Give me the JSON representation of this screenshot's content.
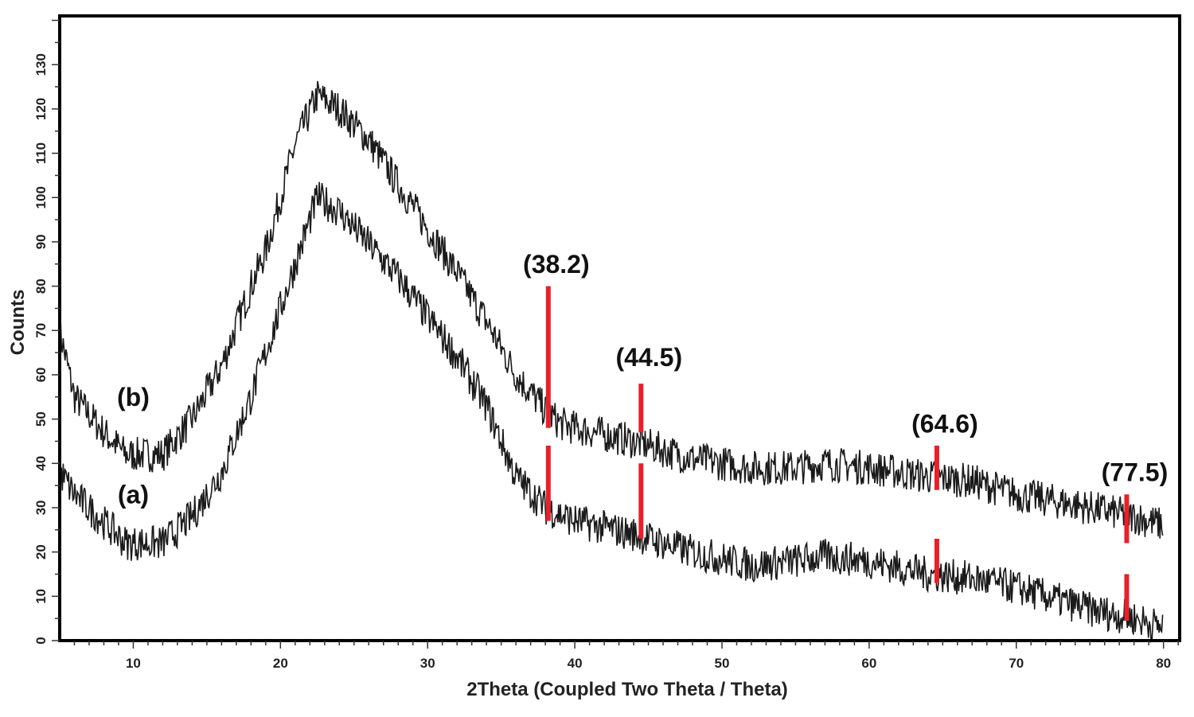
{
  "chart_data": {
    "type": "line",
    "title": "",
    "xlabel": "2Theta (Coupled Two Theta / Theta)",
    "ylabel": "Counts",
    "xlim": [
      5,
      81.1
    ],
    "ylim": [
      0,
      141
    ],
    "xticks": [
      10,
      20,
      30,
      40,
      50,
      60,
      70,
      80
    ],
    "yticks": [
      0,
      10,
      20,
      30,
      40,
      50,
      60,
      70,
      80,
      90,
      100,
      110,
      120,
      130
    ],
    "grid": false,
    "series": [
      {
        "name": "(b)",
        "label_at": [
          10,
          53
        ],
        "noise": 4,
        "points": [
          [
            5,
            70
          ],
          [
            6,
            55
          ],
          [
            8,
            47
          ],
          [
            9.5,
            42
          ],
          [
            12,
            42
          ],
          [
            14,
            50
          ],
          [
            16,
            62
          ],
          [
            18,
            80
          ],
          [
            19,
            88
          ],
          [
            20,
            100
          ],
          [
            21,
            112
          ],
          [
            22.5,
            123
          ],
          [
            24,
            120
          ],
          [
            26,
            113
          ],
          [
            28,
            103
          ],
          [
            30,
            93
          ],
          [
            32,
            83
          ],
          [
            34,
            72
          ],
          [
            36,
            60
          ],
          [
            38,
            52
          ],
          [
            39,
            49
          ],
          [
            40,
            48
          ],
          [
            44,
            45
          ],
          [
            48,
            41
          ],
          [
            52,
            39
          ],
          [
            55,
            39
          ],
          [
            57,
            40
          ],
          [
            60,
            39
          ],
          [
            64,
            37
          ],
          [
            67,
            36
          ],
          [
            70,
            33
          ],
          [
            75,
            30
          ],
          [
            78,
            28
          ],
          [
            80,
            26
          ]
        ]
      },
      {
        "name": "(a)",
        "label_at": [
          10,
          31
        ],
        "noise": 4,
        "points": [
          [
            5,
            38
          ],
          [
            6,
            33
          ],
          [
            9.5,
            22
          ],
          [
            12,
            22
          ],
          [
            14,
            28
          ],
          [
            16,
            38
          ],
          [
            18,
            55
          ],
          [
            20,
            75
          ],
          [
            22.5,
            100
          ],
          [
            24,
            97
          ],
          [
            28,
            82
          ],
          [
            32,
            64
          ],
          [
            34,
            53
          ],
          [
            36,
            37
          ],
          [
            38,
            30
          ],
          [
            40,
            27
          ],
          [
            44,
            24
          ],
          [
            48,
            20
          ],
          [
            52,
            17
          ],
          [
            55,
            18
          ],
          [
            57,
            19
          ],
          [
            60,
            18
          ],
          [
            64,
            15
          ],
          [
            67,
            14
          ],
          [
            70,
            12
          ],
          [
            75,
            7
          ],
          [
            78,
            5
          ],
          [
            80,
            3
          ]
        ]
      }
    ],
    "peak_markers": [
      {
        "label": "(38.2)",
        "x": 38.2,
        "label_y": 83,
        "ranges": [
          [
            48,
            80
          ],
          [
            27,
            44
          ]
        ]
      },
      {
        "label": "(44.5)",
        "x": 44.5,
        "label_y": 62,
        "ranges": [
          [
            47,
            58
          ],
          [
            23,
            40
          ]
        ]
      },
      {
        "label": "(64.6)",
        "x": 64.6,
        "label_y": 47,
        "ranges": [
          [
            34,
            44
          ],
          [
            13,
            23
          ]
        ]
      },
      {
        "label": "(77.5)",
        "x": 77.5,
        "label_y": 36,
        "ranges": [
          [
            22,
            33
          ],
          [
            4.5,
            15
          ]
        ]
      }
    ],
    "colors": {
      "line": "#1a1a1a",
      "marker": "#e8202a",
      "frame": "#000000"
    }
  }
}
